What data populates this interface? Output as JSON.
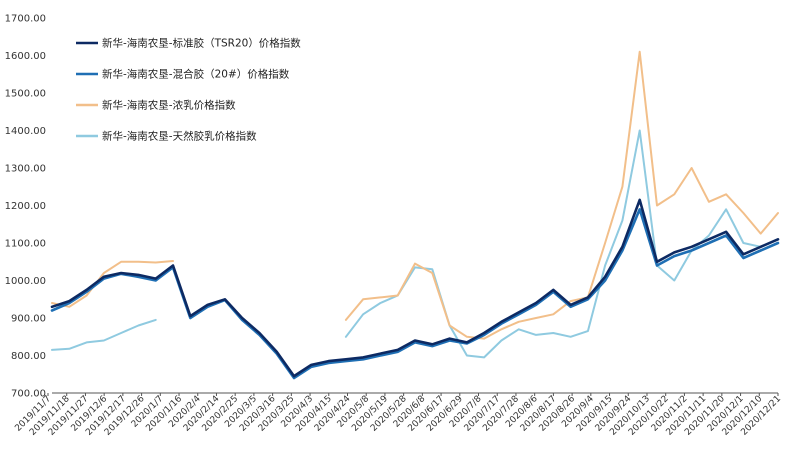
{
  "chart_data": {
    "type": "line",
    "title": "",
    "xlabel": "",
    "ylabel": "",
    "ylim": [
      700,
      1700
    ],
    "y_ticks": [
      "700.00",
      "800.00",
      "900.00",
      "1000.00",
      "1100.00",
      "1200.00",
      "1300.00",
      "1400.00",
      "1500.00",
      "1600.00",
      "1700.00"
    ],
    "x_tick_labels": [
      "2019/11/7",
      "2019/11/18",
      "2019/11/27",
      "2019/12/6",
      "2019/12/17",
      "2019/12/26",
      "2020/1/7",
      "2020/1/16",
      "2020/2/4",
      "2020/2/14",
      "2020/2/25",
      "2020/3/5",
      "2020/3/16",
      "2020/3/25",
      "2020/4/3",
      "2020/4/15",
      "2020/4/24",
      "2020/5/8",
      "2020/5/19",
      "2020/5/28",
      "2020/6/8",
      "2020/6/17",
      "2020/6/29",
      "2020/7/8",
      "2020/7/17",
      "2020/7/28",
      "2020/8/6",
      "2020/8/17",
      "2020/8/26",
      "2020/9/4",
      "2020/9/15",
      "2020/9/24",
      "2020/10/13",
      "2020/10/22",
      "2020/11/2",
      "2020/11/11",
      "2020/11/20",
      "2020/12/1",
      "2020/12/10",
      "2020/12/21"
    ],
    "grid": false,
    "legend_position": "top-left",
    "series": [
      {
        "name": "新华-海南农垦-标准胶（TSR20）价格指数",
        "color": "#0d2a63",
        "points": [
          [
            0,
            930
          ],
          [
            1,
            945
          ],
          [
            2,
            975
          ],
          [
            3,
            1010
          ],
          [
            4,
            1020
          ],
          [
            5,
            1015
          ],
          [
            6,
            1005
          ],
          [
            7,
            1040
          ],
          [
            8,
            905
          ],
          [
            9,
            935
          ],
          [
            10,
            950
          ],
          [
            11,
            900
          ],
          [
            12,
            860
          ],
          [
            13,
            810
          ],
          [
            14,
            745
          ],
          [
            15,
            775
          ],
          [
            16,
            785
          ],
          [
            17,
            790
          ],
          [
            18,
            795
          ],
          [
            19,
            805
          ],
          [
            20,
            815
          ],
          [
            21,
            840
          ],
          [
            22,
            830
          ],
          [
            23,
            845
          ],
          [
            24,
            835
          ],
          [
            25,
            860
          ],
          [
            26,
            890
          ],
          [
            27,
            915
          ],
          [
            28,
            940
          ],
          [
            29,
            975
          ],
          [
            30,
            935
          ],
          [
            31,
            955
          ],
          [
            32,
            1010
          ],
          [
            33,
            1090
          ],
          [
            34,
            1215
          ],
          [
            35,
            1050
          ],
          [
            36,
            1075
          ],
          [
            37,
            1090
          ],
          [
            38,
            1110
          ],
          [
            39,
            1130
          ],
          [
            40,
            1070
          ],
          [
            41,
            1090
          ],
          [
            42,
            1110
          ]
        ]
      },
      {
        "name": "新华-海南农垦-混合胶（20#）价格指数",
        "color": "#1f6fb4",
        "points": [
          [
            0,
            920
          ],
          [
            1,
            940
          ],
          [
            2,
            970
          ],
          [
            3,
            1005
          ],
          [
            4,
            1018
          ],
          [
            5,
            1010
          ],
          [
            6,
            1000
          ],
          [
            7,
            1035
          ],
          [
            8,
            900
          ],
          [
            9,
            930
          ],
          [
            10,
            948
          ],
          [
            11,
            895
          ],
          [
            12,
            855
          ],
          [
            13,
            805
          ],
          [
            14,
            740
          ],
          [
            15,
            770
          ],
          [
            16,
            780
          ],
          [
            17,
            785
          ],
          [
            18,
            790
          ],
          [
            19,
            800
          ],
          [
            20,
            810
          ],
          [
            21,
            835
          ],
          [
            22,
            825
          ],
          [
            23,
            840
          ],
          [
            24,
            832
          ],
          [
            25,
            855
          ],
          [
            26,
            885
          ],
          [
            27,
            910
          ],
          [
            28,
            935
          ],
          [
            29,
            970
          ],
          [
            30,
            930
          ],
          [
            31,
            950
          ],
          [
            32,
            1000
          ],
          [
            33,
            1080
          ],
          [
            34,
            1190
          ],
          [
            35,
            1040
          ],
          [
            36,
            1065
          ],
          [
            37,
            1080
          ],
          [
            38,
            1100
          ],
          [
            39,
            1120
          ],
          [
            40,
            1060
          ],
          [
            41,
            1080
          ],
          [
            42,
            1100
          ]
        ]
      },
      {
        "name": "新华-海南农垦-浓乳价格指数",
        "color": "#f2bf8a",
        "points": [
          [
            0,
            940
          ],
          [
            1,
            930
          ],
          [
            2,
            960
          ],
          [
            3,
            1020
          ],
          [
            4,
            1050
          ],
          [
            5,
            1050
          ],
          [
            6,
            1048
          ],
          [
            7,
            1052
          ],
          [
            17,
            895
          ],
          [
            18,
            950
          ],
          [
            19,
            955
          ],
          [
            20,
            960
          ],
          [
            21,
            1045
          ],
          [
            22,
            1020
          ],
          [
            23,
            880
          ],
          [
            24,
            850
          ],
          [
            25,
            845
          ],
          [
            26,
            870
          ],
          [
            27,
            890
          ],
          [
            28,
            900
          ],
          [
            29,
            910
          ],
          [
            30,
            945
          ],
          [
            31,
            955
          ],
          [
            32,
            1100
          ],
          [
            33,
            1250
          ],
          [
            34,
            1610
          ],
          [
            35,
            1200
          ],
          [
            36,
            1230
          ],
          [
            37,
            1300
          ],
          [
            38,
            1210
          ],
          [
            39,
            1230
          ],
          [
            40,
            1180
          ],
          [
            41,
            1125
          ],
          [
            42,
            1180
          ]
        ]
      },
      {
        "name": "新华-海南农垦-天然胶乳价格指数",
        "color": "#8fcae0",
        "points": [
          [
            0,
            815
          ],
          [
            1,
            818
          ],
          [
            2,
            835
          ],
          [
            3,
            840
          ],
          [
            4,
            860
          ],
          [
            5,
            880
          ],
          [
            6,
            895
          ],
          [
            17,
            850
          ],
          [
            18,
            910
          ],
          [
            19,
            940
          ],
          [
            20,
            960
          ],
          [
            21,
            1035
          ],
          [
            22,
            1030
          ],
          [
            23,
            880
          ],
          [
            24,
            800
          ],
          [
            25,
            795
          ],
          [
            26,
            840
          ],
          [
            27,
            870
          ],
          [
            28,
            855
          ],
          [
            29,
            860
          ],
          [
            30,
            850
          ],
          [
            31,
            865
          ],
          [
            32,
            1040
          ],
          [
            33,
            1160
          ],
          [
            34,
            1400
          ],
          [
            35,
            1040
          ],
          [
            36,
            1000
          ],
          [
            37,
            1080
          ],
          [
            38,
            1120
          ],
          [
            39,
            1190
          ],
          [
            40,
            1100
          ],
          [
            41,
            1090
          ],
          [
            42,
            1110
          ]
        ]
      }
    ]
  }
}
